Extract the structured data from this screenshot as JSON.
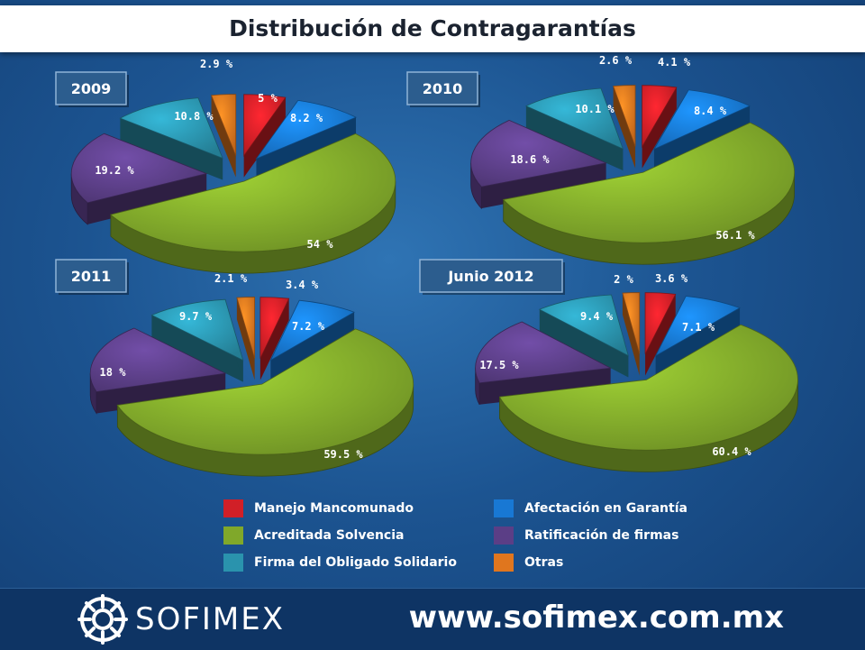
{
  "title": "Distribución de Contragarantías",
  "categories": [
    "Manejo Mancomunado",
    "Afectación en Garantía",
    "Acreditada Solvencia",
    "Ratificación de firmas",
    "Firma del Obligado Solidario",
    "Otras"
  ],
  "colors": {
    "Manejo Mancomunado": "#d11f27",
    "Afectación en Garantía": "#1878d4",
    "Acreditada Solvencia": "#80a82a",
    "Ratificación de firmas": "#5b3e86",
    "Firma del Obligado Solidario": "#2a93ad",
    "Otras": "#e0761e"
  },
  "chart_data": [
    {
      "type": "pie",
      "title": "2009",
      "categories": [
        "Manejo Mancomunado",
        "Afectación en Garantía",
        "Acreditada Solvencia",
        "Ratificación de firmas",
        "Firma del Obligado Solidario",
        "Otras"
      ],
      "values": [
        5,
        8.2,
        54,
        19.2,
        10.8,
        2.9
      ],
      "labels": [
        "5 %",
        "8.2 %",
        "54 %",
        "19.2 %",
        "10.8 %",
        "2.9 %"
      ]
    },
    {
      "type": "pie",
      "title": "2010",
      "categories": [
        "Manejo Mancomunado",
        "Afectación en Garantía",
        "Acreditada Solvencia",
        "Ratificación de firmas",
        "Firma del Obligado Solidario",
        "Otras"
      ],
      "values": [
        4.1,
        8.4,
        56.1,
        18.6,
        10.1,
        2.6
      ],
      "labels": [
        "4.1 %",
        "8.4 %",
        "56.1 %",
        "18.6 %",
        "10.1 %",
        "2.6 %"
      ]
    },
    {
      "type": "pie",
      "title": "2011",
      "categories": [
        "Manejo Mancomunado",
        "Afectación en Garantía",
        "Acreditada Solvencia",
        "Ratificación de firmas",
        "Firma del Obligado Solidario",
        "Otras"
      ],
      "values": [
        3.4,
        7.2,
        59.5,
        18,
        9.7,
        2.1
      ],
      "labels": [
        "3.4 %",
        "7.2 %",
        "59.5 %",
        "18 %",
        "9.7 %",
        "2.1 %"
      ]
    },
    {
      "type": "pie",
      "title": "Junio 2012",
      "categories": [
        "Manejo Mancomunado",
        "Afectación en Garantía",
        "Acreditada Solvencia",
        "Ratificación de firmas",
        "Firma del Obligado Solidario",
        "Otras"
      ],
      "values": [
        3.6,
        7.1,
        60.4,
        17.5,
        9.4,
        2
      ],
      "labels": [
        "3.6 %",
        "7.1 %",
        "60.4 %",
        "17.5 %",
        "9.4 %",
        "2 %"
      ]
    }
  ],
  "footer": {
    "logo_text": "SOFIMEX",
    "website": "www.sofimex.com.mx"
  }
}
